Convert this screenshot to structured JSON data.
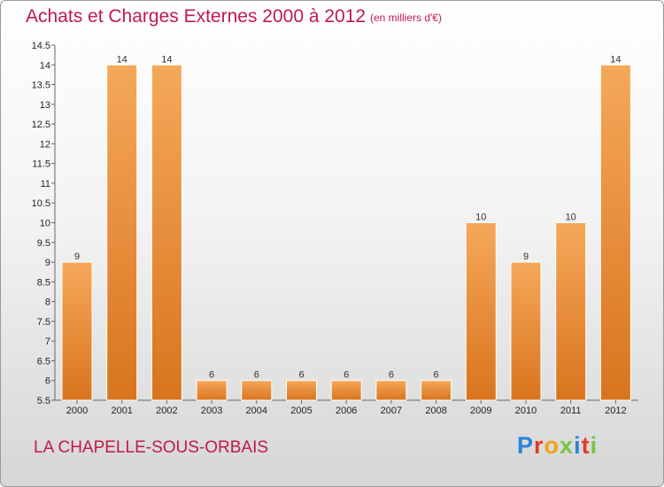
{
  "header": {
    "title": "Achats et Charges Externes 2000 à 2012",
    "unit": "(en milliers d'€)"
  },
  "footer": {
    "commune": "LA CHAPELLE-SOUS-ORBAIS",
    "logo": {
      "p": "P",
      "r": "r",
      "o": "o",
      "x": "x",
      "i": "i",
      "t": "t",
      "i2": "i"
    }
  },
  "colors": {
    "accent": "#c0194a",
    "bar_top": "#f5a85a",
    "bar_bottom": "#d9741e"
  },
  "chart_data": {
    "type": "bar",
    "title": "Achats et Charges Externes 2000 à 2012",
    "subtitle": "(en milliers d'€)",
    "categories": [
      "2000",
      "2001",
      "2002",
      "2003",
      "2004",
      "2005",
      "2006",
      "2007",
      "2008",
      "2009",
      "2010",
      "2011",
      "2012"
    ],
    "values": [
      9,
      14,
      14,
      6,
      6,
      6,
      6,
      6,
      6,
      10,
      9,
      10,
      14
    ],
    "data_labels": [
      "9",
      "14",
      "14",
      "6",
      "6",
      "6",
      "6",
      "6",
      "6",
      "10",
      "9",
      "10",
      "14"
    ],
    "ylim": [
      5.5,
      14.5
    ],
    "yticks": [
      "5.5",
      "6",
      "6.5",
      "7",
      "7.5",
      "8",
      "8.5",
      "9",
      "9.5",
      "10",
      "10.5",
      "11",
      "11.5",
      "12",
      "12.5",
      "13",
      "13.5",
      "14",
      "14.5"
    ],
    "grid": false,
    "legend": "none"
  }
}
